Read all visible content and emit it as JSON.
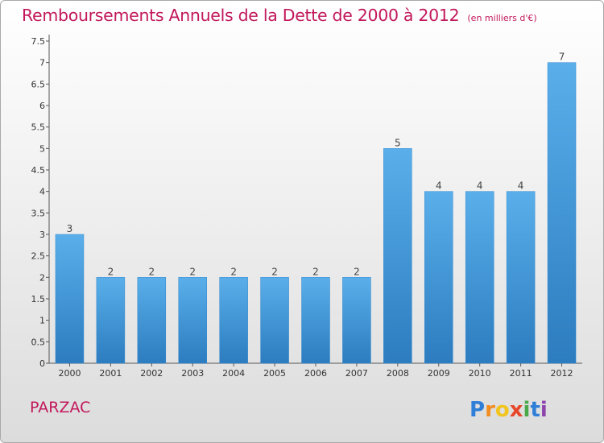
{
  "header": {
    "title": "Remboursements Annuels de la Dette de 2000 à 2012",
    "unit": "(en milliers d'€)"
  },
  "commune": "PARZAC",
  "logo": {
    "text": "Proxiti"
  },
  "colors": {
    "title": "#c2185b",
    "bar_top": "#5aafea",
    "bar_bottom": "#2c7cbf"
  },
  "chart_data": {
    "type": "bar",
    "title": "Remboursements Annuels de la Dette de 2000 à 2012",
    "subtitle": "(en milliers d'€)",
    "categories": [
      "2000",
      "2001",
      "2002",
      "2003",
      "2004",
      "2005",
      "2006",
      "2007",
      "2008",
      "2009",
      "2010",
      "2011",
      "2012"
    ],
    "values": [
      3,
      2,
      2,
      2,
      2,
      2,
      2,
      2,
      5,
      4,
      4,
      4,
      7
    ],
    "ylim": [
      0,
      7.5
    ],
    "yticks": [
      "0",
      "0.5",
      "1",
      "1.5",
      "2",
      "2.5",
      "3",
      "3.5",
      "4",
      "4.5",
      "5",
      "5.5",
      "6",
      "6.5",
      "7",
      "7.5"
    ],
    "grid": false,
    "legend": "none"
  }
}
